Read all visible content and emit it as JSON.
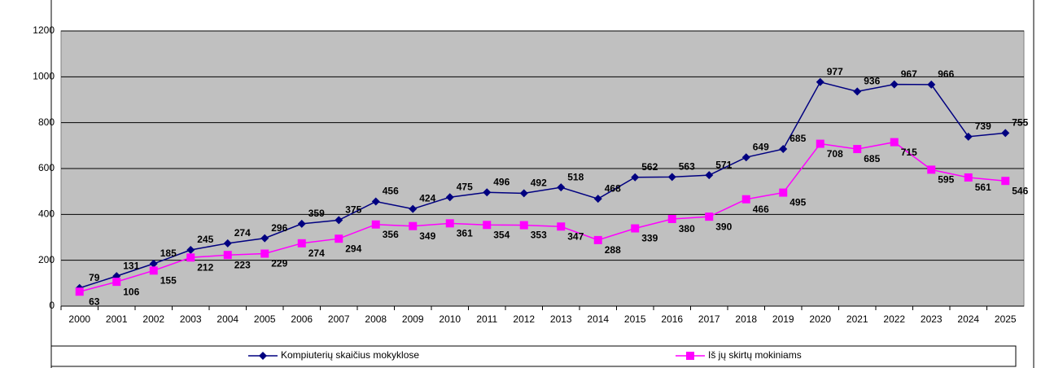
{
  "chart_data": {
    "type": "line",
    "categories": [
      "2000",
      "2001",
      "2002",
      "2003",
      "2004",
      "2005",
      "2006",
      "2007",
      "2008",
      "2009",
      "2010",
      "2011",
      "2012",
      "2013",
      "2014",
      "2015",
      "2016",
      "2017",
      "2018",
      "2019",
      "2020",
      "2021",
      "2022",
      "2023",
      "2024",
      "2025"
    ],
    "series": [
      {
        "name": "Kompiuterių skaičius mokyklose",
        "color": "#000080",
        "marker": "diamond",
        "values": [
          79,
          131,
          185,
          245,
          274,
          296,
          359,
          375,
          456,
          424,
          475,
          496,
          492,
          518,
          468,
          562,
          563,
          571,
          649,
          685,
          977,
          936,
          967,
          966,
          739,
          755
        ]
      },
      {
        "name": "Iš jų skirtų mokiniams",
        "color": "#ff00ff",
        "marker": "square",
        "values": [
          63,
          106,
          155,
          212,
          223,
          229,
          274,
          294,
          356,
          349,
          361,
          354,
          353,
          347,
          288,
          339,
          380,
          390,
          466,
          495,
          708,
          685,
          715,
          595,
          561,
          546
        ]
      }
    ],
    "ylim": [
      0,
      1200
    ],
    "yticks": [
      0,
      200,
      400,
      600,
      800,
      1000,
      1200
    ],
    "grid": true,
    "plot_color": "#c0c0c0",
    "legend": "bottom"
  }
}
